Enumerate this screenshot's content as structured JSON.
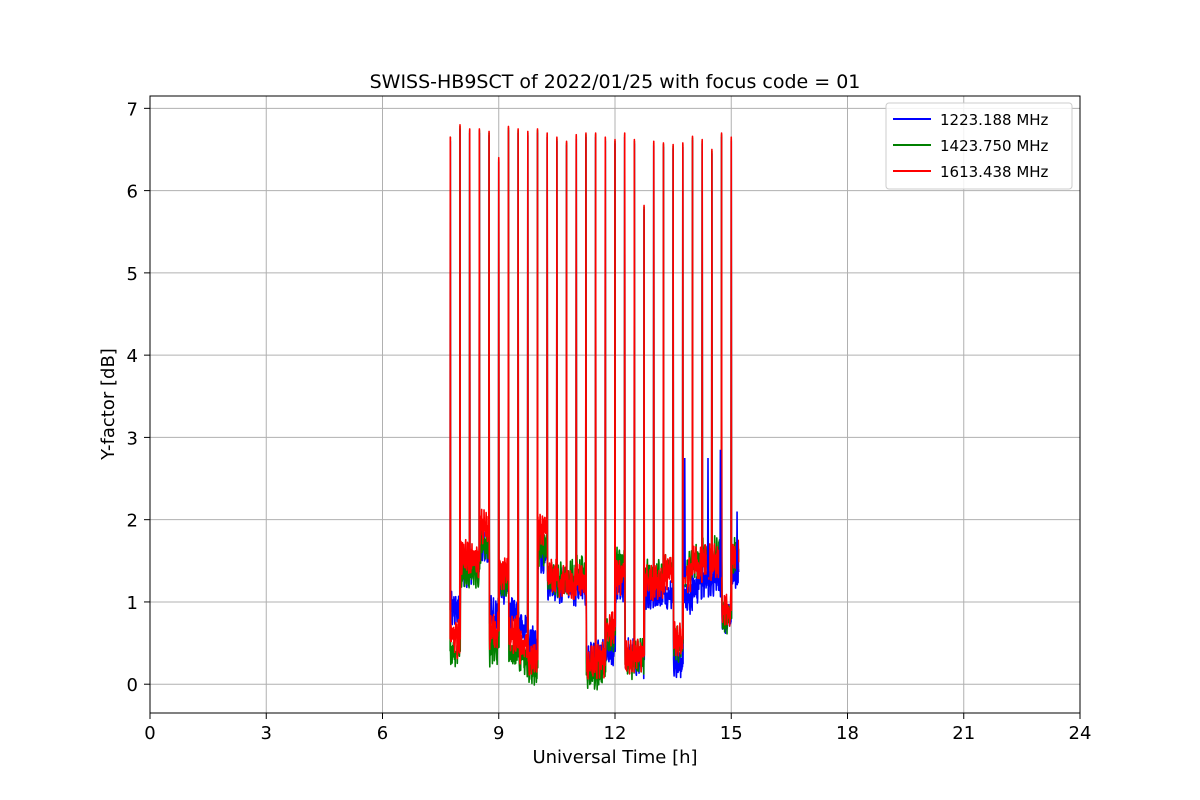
{
  "chart_data": {
    "type": "line",
    "title": "SWISS-HB9SCT of 2022/01/25 with focus code = 01",
    "xlabel": "Universal Time [h]",
    "ylabel": "Y-factor [dB]",
    "xlim": [
      0,
      24
    ],
    "ylim": [
      -0.35,
      7.15
    ],
    "xticks": [
      0,
      3,
      6,
      9,
      12,
      15,
      18,
      21,
      24
    ],
    "xtick_labels": [
      "0",
      "3",
      "6",
      "9",
      "12",
      "15",
      "18",
      "21",
      "24"
    ],
    "yticks": [
      0,
      1,
      2,
      3,
      4,
      5,
      6,
      7
    ],
    "ytick_labels": [
      "0",
      "1",
      "2",
      "3",
      "4",
      "5",
      "6",
      "7"
    ],
    "grid": true,
    "legend_position": "top-right",
    "series": [
      {
        "name": "1223.188 MHz",
        "color": "#0000ff",
        "draw_order": 0
      },
      {
        "name": "1423.750 MHz",
        "color": "#008000",
        "draw_order": 1
      },
      {
        "name": "1613.438 MHz",
        "color": "#ff0000",
        "draw_order": 2
      }
    ],
    "calibration_spikes": {
      "x": [
        7.75,
        8.0,
        8.25,
        8.5,
        8.75,
        9.0,
        9.25,
        9.5,
        9.75,
        10.0,
        10.25,
        10.5,
        10.75,
        11.0,
        11.25,
        11.5,
        11.75,
        12.0,
        12.25,
        12.5,
        12.75,
        13.0,
        13.25,
        13.5,
        13.75,
        14.0,
        14.25,
        14.5,
        14.75,
        15.0
      ],
      "peak": [
        6.65,
        6.8,
        6.75,
        6.75,
        6.72,
        6.4,
        6.78,
        6.75,
        6.72,
        6.75,
        6.7,
        6.65,
        6.6,
        6.68,
        6.7,
        6.7,
        6.65,
        6.62,
        6.7,
        6.62,
        5.82,
        6.6,
        6.58,
        6.56,
        6.58,
        6.66,
        6.62,
        6.5,
        6.7,
        6.65
      ]
    },
    "baseline_segments": [
      {
        "x_start": 7.75,
        "x_end": 8.0,
        "values": [
          0.9,
          0.4,
          0.55
        ]
      },
      {
        "x_start": 8.0,
        "x_end": 8.25,
        "values": [
          1.4,
          1.35,
          1.55
        ]
      },
      {
        "x_start": 8.25,
        "x_end": 8.5,
        "values": [
          1.45,
          1.4,
          1.5
        ]
      },
      {
        "x_start": 8.5,
        "x_end": 8.75,
        "values": [
          1.65,
          1.7,
          1.9
        ]
      },
      {
        "x_start": 8.75,
        "x_end": 9.0,
        "values": [
          0.85,
          0.45,
          0.65
        ]
      },
      {
        "x_start": 9.0,
        "x_end": 9.25,
        "values": [
          1.2,
          1.3,
          1.35
        ]
      },
      {
        "x_start": 9.25,
        "x_end": 9.5,
        "values": [
          0.85,
          0.4,
          0.6
        ]
      },
      {
        "x_start": 9.5,
        "x_end": 9.75,
        "values": [
          0.7,
          0.3,
          0.45
        ]
      },
      {
        "x_start": 9.75,
        "x_end": 10.0,
        "values": [
          0.5,
          0.2,
          0.3
        ]
      },
      {
        "x_start": 10.0,
        "x_end": 10.25,
        "values": [
          1.55,
          1.65,
          1.85
        ]
      },
      {
        "x_start": 10.25,
        "x_end": 10.5,
        "values": [
          1.25,
          1.3,
          1.3
        ]
      },
      {
        "x_start": 10.5,
        "x_end": 10.75,
        "values": [
          1.2,
          1.25,
          1.25
        ]
      },
      {
        "x_start": 10.75,
        "x_end": 11.0,
        "values": [
          1.15,
          1.3,
          1.2
        ]
      },
      {
        "x_start": 11.0,
        "x_end": 11.25,
        "values": [
          1.2,
          1.35,
          1.25
        ]
      },
      {
        "x_start": 11.25,
        "x_end": 11.5,
        "values": [
          0.3,
          0.15,
          0.25
        ]
      },
      {
        "x_start": 11.5,
        "x_end": 11.75,
        "values": [
          0.35,
          0.15,
          0.3
        ]
      },
      {
        "x_start": 11.75,
        "x_end": 12.0,
        "values": [
          0.4,
          0.6,
          0.7
        ]
      },
      {
        "x_start": 12.0,
        "x_end": 12.25,
        "values": [
          1.15,
          1.5,
          1.3
        ]
      },
      {
        "x_start": 12.25,
        "x_end": 12.5,
        "values": [
          0.35,
          0.25,
          0.3
        ]
      },
      {
        "x_start": 12.5,
        "x_end": 12.75,
        "values": [
          0.3,
          0.35,
          0.35
        ]
      },
      {
        "x_start": 12.75,
        "x_end": 13.0,
        "values": [
          1.1,
          1.35,
          1.25
        ]
      },
      {
        "x_start": 13.0,
        "x_end": 13.25,
        "values": [
          1.15,
          1.3,
          1.25
        ]
      },
      {
        "x_start": 13.25,
        "x_end": 13.5,
        "values": [
          1.1,
          1.4,
          1.35
        ]
      },
      {
        "x_start": 13.5,
        "x_end": 13.75,
        "values": [
          0.25,
          0.5,
          0.55
        ]
      },
      {
        "x_start": 13.75,
        "x_end": 14.0,
        "values": [
          1.05,
          1.4,
          1.35
        ]
      },
      {
        "x_start": 14.0,
        "x_end": 14.25,
        "values": [
          1.2,
          1.5,
          1.45
        ]
      },
      {
        "x_start": 14.25,
        "x_end": 14.5,
        "values": [
          1.25,
          1.55,
          1.5
        ]
      },
      {
        "x_start": 14.5,
        "x_end": 14.75,
        "values": [
          1.3,
          1.6,
          1.5
        ]
      },
      {
        "x_start": 14.75,
        "x_end": 15.0,
        "values": [
          0.8,
          0.8,
          0.9
        ]
      },
      {
        "x_start": 15.0,
        "x_end": 15.2,
        "values": [
          1.35,
          1.55,
          1.55
        ]
      }
    ],
    "blue_spikes": [
      {
        "x": 13.8,
        "y": 2.75
      },
      {
        "x": 14.4,
        "y": 2.75
      },
      {
        "x": 14.72,
        "y": 2.85
      },
      {
        "x": 15.15,
        "y": 2.1
      }
    ]
  }
}
